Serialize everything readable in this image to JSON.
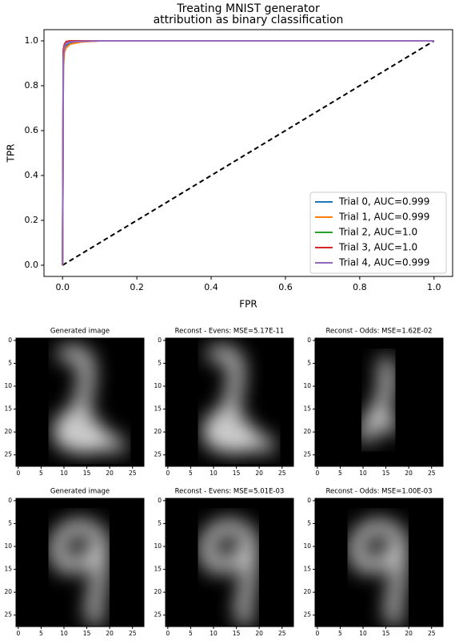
{
  "chart_data": [
    {
      "type": "line",
      "title": "Treating MNIST generator\nattribution as binary classification",
      "xlabel": "FPR",
      "ylabel": "TPR",
      "x": [
        0,
        0.002,
        0.005,
        0.01,
        0.02,
        0.05,
        0.1,
        1
      ],
      "series": [
        {
          "name": "Trial 0, AUC=0.999",
          "color": "#1f77b4",
          "values": [
            0,
            0.9,
            0.96,
            0.98,
            0.99,
            0.997,
            1,
            1
          ]
        },
        {
          "name": "Trial 1, AUC=0.999",
          "color": "#ff7f0e",
          "values": [
            0,
            0.88,
            0.95,
            0.97,
            0.985,
            0.995,
            1,
            1
          ]
        },
        {
          "name": "Trial 2, AUC=1.0",
          "color": "#2ca02c",
          "values": [
            0,
            0.95,
            0.98,
            0.995,
            1,
            1,
            1,
            1
          ]
        },
        {
          "name": "Trial 3, AUC=1.0",
          "color": "#d62728",
          "values": [
            0,
            0.96,
            0.985,
            0.997,
            1,
            1,
            1,
            1
          ]
        },
        {
          "name": "Trial 4, AUC=0.999",
          "color": "#9467bd",
          "values": [
            0,
            0.92,
            0.97,
            0.99,
            0.995,
            0.998,
            1,
            1
          ]
        }
      ],
      "reference_line": "diagonal",
      "legend": "lower right",
      "xlim": [
        -0.05,
        1.05
      ],
      "ylim": [
        -0.05,
        1.05
      ],
      "xticks": [
        {
          "value": 0,
          "label": "0.0"
        },
        0.2,
        0.4,
        0.6,
        0.8,
        {
          "value": 1,
          "label": "1.0"
        }
      ],
      "yticks": [
        {
          "value": 0,
          "label": "0.0"
        },
        0.2,
        0.4,
        0.6,
        0.8,
        {
          "value": 1,
          "label": "1.0"
        }
      ]
    },
    {
      "type": "image",
      "title": "Generated image",
      "xlim": [
        -0.5,
        27.5
      ],
      "ylim": [
        27.5,
        -0.5
      ],
      "xticks": [
        0,
        5,
        10,
        15,
        20,
        25
      ],
      "yticks": [
        0,
        5,
        10,
        15,
        20,
        25
      ]
    },
    {
      "type": "image",
      "title": "Reconst - Evens: MSE=5.17E-11",
      "xlim": [
        -0.5,
        27.5
      ],
      "ylim": [
        27.5,
        -0.5
      ],
      "xticks": [
        0,
        5,
        10,
        15,
        20,
        25
      ],
      "yticks": [
        0,
        5,
        10,
        15,
        20,
        25
      ]
    },
    {
      "type": "image",
      "title": "Reconst - Odds: MSE=1.62E-02",
      "xlim": [
        -0.5,
        27.5
      ],
      "ylim": [
        27.5,
        -0.5
      ],
      "xticks": [
        0,
        5,
        10,
        15,
        20,
        25
      ],
      "yticks": [
        0,
        5,
        10,
        15,
        20,
        25
      ]
    },
    {
      "type": "image",
      "title": "Generated image",
      "xlim": [
        -0.5,
        27.5
      ],
      "ylim": [
        27.5,
        -0.5
      ],
      "xticks": [
        0,
        5,
        10,
        15,
        20,
        25
      ],
      "yticks": [
        0,
        5,
        10,
        15,
        20,
        25
      ]
    },
    {
      "type": "image",
      "title": "Reconst - Evens: MSE=5.01E-03",
      "xlim": [
        -0.5,
        27.5
      ],
      "ylim": [
        27.5,
        -0.5
      ],
      "xticks": [
        0,
        5,
        10,
        15,
        20,
        25
      ],
      "yticks": [
        0,
        5,
        10,
        15,
        20,
        25
      ]
    },
    {
      "type": "image",
      "title": "Reconst - Odds: MSE=1.00E-03",
      "xlim": [
        -0.5,
        27.5
      ],
      "ylim": [
        27.5,
        -0.5
      ],
      "xticks": [
        0,
        5,
        10,
        15,
        20,
        25
      ],
      "yticks": [
        0,
        5,
        10,
        15,
        20,
        25
      ]
    }
  ]
}
